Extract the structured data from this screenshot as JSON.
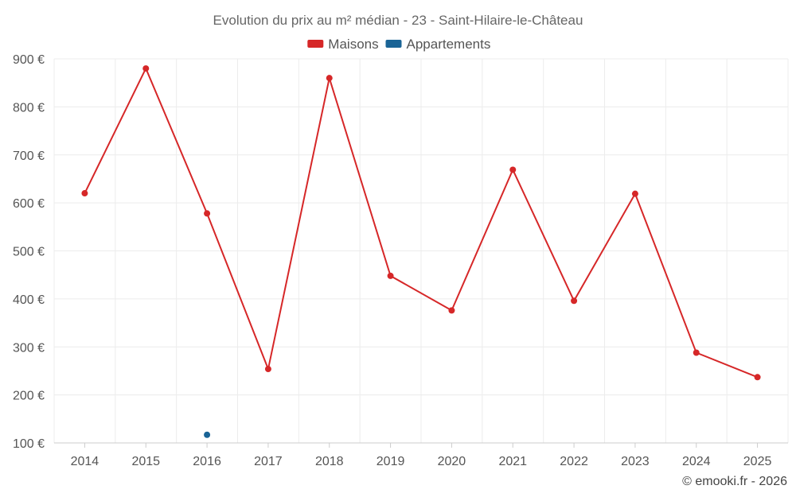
{
  "chart_data": {
    "type": "line",
    "title": "Evolution du prix au m² médian - 23 - Saint-Hilaire-le-Château",
    "categories": [
      "2014",
      "2015",
      "2016",
      "2017",
      "2018",
      "2019",
      "2020",
      "2021",
      "2022",
      "2023",
      "2024",
      "2025"
    ],
    "series": [
      {
        "name": "Maisons",
        "color": "#d62728",
        "values": [
          620,
          880,
          578,
          254,
          860,
          448,
          376,
          669,
          396,
          619,
          288,
          237
        ]
      },
      {
        "name": "Appartements",
        "color": "#1a6496",
        "values": [
          null,
          null,
          117,
          null,
          null,
          null,
          null,
          null,
          null,
          null,
          null,
          null
        ]
      }
    ],
    "ylim": [
      100,
      900
    ],
    "yticks": [
      100,
      200,
      300,
      400,
      500,
      600,
      700,
      800,
      900
    ],
    "ytick_labels": [
      "100 €",
      "200 €",
      "300 €",
      "400 €",
      "500 €",
      "600 €",
      "700 €",
      "800 €",
      "900 €"
    ],
    "grid": true,
    "legend_position": "top-center"
  },
  "credit": "© emooki.fr - 2026"
}
